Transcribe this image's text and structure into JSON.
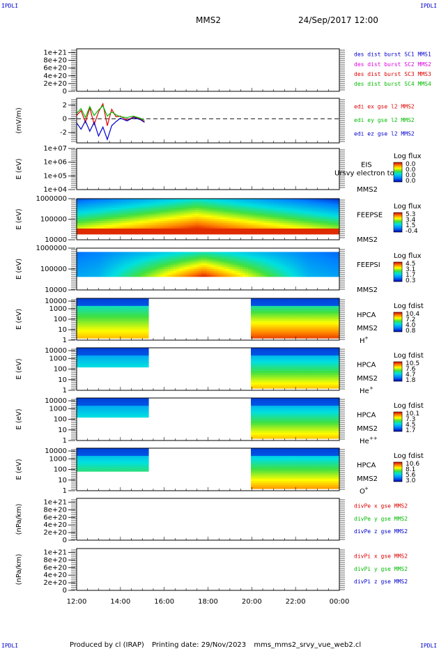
{
  "header": {
    "corner_label": "IPDLI",
    "spacecraft": "MMS2",
    "datetime": "24/Sep/2017 12:00"
  },
  "footer": {
    "produced_by": "Produced by cl (IRAP)",
    "printing_date": "Printing date: 29/Nov/2023",
    "script_name": "mms_mms2_srvy_vue_web2.cl"
  },
  "colors": {
    "red": "#dd0000",
    "magenta": "#dd00dd",
    "green": "#00bb00",
    "blue": "#0000cc"
  },
  "chart_data": [
    {
      "id": "dist",
      "type": "line",
      "ylabel": "",
      "ytick_labels": [
        "1e+21",
        "8e+20",
        "6e+20",
        "4e+20",
        "2e+20",
        "0"
      ],
      "ytick_values": [
        1e+21,
        8e+20,
        6e+20,
        4e+20,
        2e+20,
        0
      ],
      "ylim": [
        0,
        1.1e+21
      ],
      "zero_line": true,
      "legend": [
        {
          "text": "des dist burst SC1 MMS1",
          "color": "#0000cc"
        },
        {
          "text": "des dist burst SC2 MMS2",
          "color": "#dd00dd"
        },
        {
          "text": "des dist burst SC3 MMS3",
          "color": "#dd0000"
        },
        {
          "text": "des dist burst SC4 MMS4",
          "color": "#00bb00"
        }
      ]
    },
    {
      "id": "edi",
      "type": "line",
      "ylabel": "(mV/m)",
      "ytick_labels": [
        "2",
        "0",
        "-2"
      ],
      "ytick_values": [
        2,
        0,
        -2
      ],
      "ylim": [
        -3.5,
        3
      ],
      "zero_line": true,
      "legend": [
        {
          "text": "edi ex gse l2 MMS2",
          "color": "#dd0000"
        },
        {
          "text": "edi ey gse l2 MMS2",
          "color": "#00bb00"
        },
        {
          "text": "edi ez gse l2 MMS2",
          "color": "#0000cc"
        }
      ],
      "series": [
        {
          "name": "edi ex gse l2 MMS2",
          "color": "#dd0000",
          "x": [
            12.0,
            12.2,
            12.4,
            12.6,
            12.8,
            13.0,
            13.2,
            13.4,
            13.6,
            13.8,
            14.0,
            14.3,
            14.6,
            14.9,
            15.1
          ],
          "y": [
            0.5,
            1.2,
            -0.5,
            1.6,
            -0.8,
            1.0,
            2.2,
            -1.0,
            1.4,
            0.3,
            0.4,
            -0.2,
            0.3,
            0.0,
            -0.4
          ]
        },
        {
          "name": "edi ey gse l2 MMS2",
          "color": "#00bb00",
          "x": [
            12.0,
            12.2,
            12.4,
            12.6,
            12.8,
            13.0,
            13.2,
            13.4,
            13.6,
            13.8,
            14.0,
            14.3,
            14.6,
            14.9,
            15.1
          ],
          "y": [
            0.8,
            1.5,
            0.2,
            1.8,
            0.5,
            1.3,
            1.9,
            0.4,
            1.0,
            0.6,
            0.3,
            0.2,
            0.4,
            0.1,
            -0.2
          ]
        },
        {
          "name": "edi ez gse l2 MMS2",
          "color": "#0000cc",
          "x": [
            12.0,
            12.2,
            12.4,
            12.6,
            12.8,
            13.0,
            13.2,
            13.4,
            13.6,
            13.8,
            14.0,
            14.3,
            14.6,
            14.9,
            15.1
          ],
          "y": [
            -0.6,
            -1.5,
            -0.3,
            -1.8,
            -0.5,
            -2.5,
            -1.2,
            -3.0,
            -1.0,
            -0.4,
            0.1,
            -0.3,
            0.2,
            -0.1,
            -0.5
          ]
        }
      ]
    },
    {
      "id": "eis",
      "type": "heatmap",
      "ylabel": "E (eV)",
      "ytick_labels": [
        "1e+07",
        "1e+06",
        "1e+05",
        "1e+04"
      ],
      "ylim_log10": [
        4,
        7
      ],
      "instrument": "EIS",
      "extra_label": "Ursvy electron to",
      "spacecraft": "MMS2",
      "colorbar": {
        "title": "Log flux",
        "ticks": [
          "0.0",
          "0.0",
          "0.0",
          "0.0"
        ]
      },
      "empty": true
    },
    {
      "id": "feeps_e",
      "type": "heatmap",
      "ylabel": "E (eV)",
      "ytick_labels": [
        "1000000",
        "100000",
        "10000"
      ],
      "ylim_log10": [
        4,
        6
      ],
      "instrument": "FEEPSE",
      "spacecraft": "MMS2",
      "colorbar": {
        "title": "Log flux",
        "ticks": [
          "5.3",
          "3.4",
          "1.5",
          "-0.4"
        ]
      },
      "intensity": "center-peaked",
      "coverage": [
        [
          12,
          24
        ]
      ]
    },
    {
      "id": "feeps_i",
      "type": "heatmap",
      "ylabel": "E (eV)",
      "ytick_labels": [
        "1000000",
        "100000",
        "10000"
      ],
      "ylim_log10": [
        4,
        6
      ],
      "instrument": "FEEPSI",
      "spacecraft": "MMS2",
      "colorbar": {
        "title": "Log flux",
        "ticks": [
          "4.5",
          "3.1",
          "1.7",
          "0.3"
        ]
      },
      "intensity": "center-peaked",
      "coverage": [
        [
          12,
          24
        ]
      ]
    },
    {
      "id": "hpca_h",
      "type": "heatmap",
      "ylabel": "E (eV)",
      "ytick_labels": [
        "10000",
        "1000",
        "100",
        "10",
        "1"
      ],
      "ylim_log10": [
        0,
        4.3
      ],
      "instrument": "HPCA",
      "spacecraft": "MMS2",
      "species": "H",
      "species_charge": "+",
      "colorbar": {
        "title": "Log fdist",
        "ticks": [
          "10.4",
          "7.2",
          "4.0",
          "0.8"
        ]
      },
      "coverage": [
        [
          12,
          15.25
        ],
        [
          19.9,
          24
        ]
      ]
    },
    {
      "id": "hpca_he",
      "type": "heatmap",
      "ylabel": "E (eV)",
      "ytick_labels": [
        "10000",
        "1000",
        "100",
        "10",
        "1"
      ],
      "ylim_log10": [
        0,
        4.3
      ],
      "instrument": "HPCA",
      "spacecraft": "MMS2",
      "species": "He",
      "species_charge": "+",
      "colorbar": {
        "title": "Log fdist",
        "ticks": [
          "10.5",
          "7.6",
          "4.7",
          "1.8"
        ]
      },
      "coverage": [
        [
          12,
          15.25
        ],
        [
          19.9,
          24
        ]
      ]
    },
    {
      "id": "hpca_hepp",
      "type": "heatmap",
      "ylabel": "E (eV)",
      "ytick_labels": [
        "10000",
        "1000",
        "100",
        "10",
        "1"
      ],
      "ylim_log10": [
        0,
        4.3
      ],
      "instrument": "HPCA",
      "spacecraft": "MMS2",
      "species": "He",
      "species_charge": "++",
      "colorbar": {
        "title": "Log fdist",
        "ticks": [
          "10.1",
          "7.3",
          "4.5",
          "1.7"
        ]
      },
      "coverage": [
        [
          12,
          15.25
        ],
        [
          19.9,
          24
        ]
      ]
    },
    {
      "id": "hpca_o",
      "type": "heatmap",
      "ylabel": "E (eV)",
      "ytick_labels": [
        "10000",
        "1000",
        "100",
        "10",
        "1"
      ],
      "ylim_log10": [
        0,
        4.3
      ],
      "instrument": "HPCA",
      "spacecraft": "MMS2",
      "species": "O",
      "species_charge": "+",
      "colorbar": {
        "title": "Log fdist",
        "ticks": [
          "10.6",
          "8.1",
          "5.6",
          "3.0"
        ]
      },
      "coverage": [
        [
          12,
          15.25
        ],
        [
          19.9,
          24
        ]
      ]
    },
    {
      "id": "divpe",
      "type": "line",
      "ylabel": "(nPa/km)",
      "ytick_labels": [
        "1e+21",
        "8e+20",
        "6e+20",
        "4e+20",
        "2e+20",
        "0"
      ],
      "ytick_values": [
        1e+21,
        8e+20,
        6e+20,
        4e+20,
        2e+20,
        0
      ],
      "ylim": [
        0,
        1.1e+21
      ],
      "zero_line": true,
      "legend": [
        {
          "text": "divPe x gse MMS2",
          "color": "#dd0000"
        },
        {
          "text": "divPe y gse MMS2",
          "color": "#00bb00"
        },
        {
          "text": "divPe z gse MMS2",
          "color": "#0000cc"
        }
      ]
    },
    {
      "id": "divpi",
      "type": "line",
      "ylabel": "(nPa/km)",
      "ytick_labels": [
        "1e+21",
        "8e+20",
        "6e+20",
        "4e+20",
        "2e+20",
        "0"
      ],
      "ytick_values": [
        1e+21,
        8e+20,
        6e+20,
        4e+20,
        2e+20,
        0
      ],
      "ylim": [
        0,
        1.1e+21
      ],
      "zero_line": true,
      "legend": [
        {
          "text": "divPi x gse MMS2",
          "color": "#dd0000"
        },
        {
          "text": "divPi y gse MMS2",
          "color": "#00bb00"
        },
        {
          "text": "divPi z gse MMS2",
          "color": "#0000cc"
        }
      ]
    }
  ],
  "x_axis": {
    "range_hours": [
      12,
      24
    ],
    "tick_labels": [
      "12:00",
      "14:00",
      "16:00",
      "18:00",
      "20:00",
      "22:00",
      "00:00"
    ],
    "tick_values": [
      12,
      14,
      16,
      18,
      20,
      22,
      24
    ]
  }
}
